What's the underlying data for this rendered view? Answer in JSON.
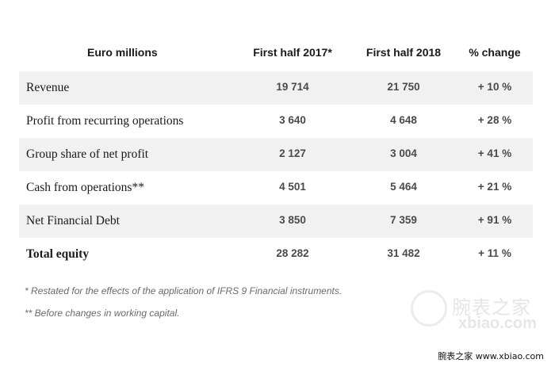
{
  "header": {
    "col0": "Euro millions",
    "col1": "First half 2017*",
    "col2": "First half 2018",
    "col3": "% change"
  },
  "rows": [
    {
      "label": "Revenue",
      "h1_2017": "19 714",
      "h1_2018": "21 750",
      "change": "+ 10 %"
    },
    {
      "label": "Profit from recurring operations",
      "h1_2017": "3 640",
      "h1_2018": "4 648",
      "change": "+ 28 %"
    },
    {
      "label": "Group share of net profit",
      "h1_2017": "2 127",
      "h1_2018": "3 004",
      "change": "+ 41 %"
    },
    {
      "label": "Cash from operations**",
      "h1_2017": "4 501",
      "h1_2018": "5 464",
      "change": "+ 21 %"
    },
    {
      "label": "Net Financial Debt",
      "h1_2017": "3 850",
      "h1_2018": "7 359",
      "change": "+ 91 %"
    },
    {
      "label": "Total equity",
      "h1_2017": "28 282",
      "h1_2018": "31 482",
      "change": "+ 11 %"
    }
  ],
  "notes": {
    "note1": "* Restated for the effects of the application of IFRS 9 Financial instruments.",
    "note2": "**  Before changes in working capital."
  },
  "watermark": {
    "text_cn": "腕表之家",
    "text_url": "xbiao.com"
  },
  "footer": "腕表之家 www.xbiao.com"
}
